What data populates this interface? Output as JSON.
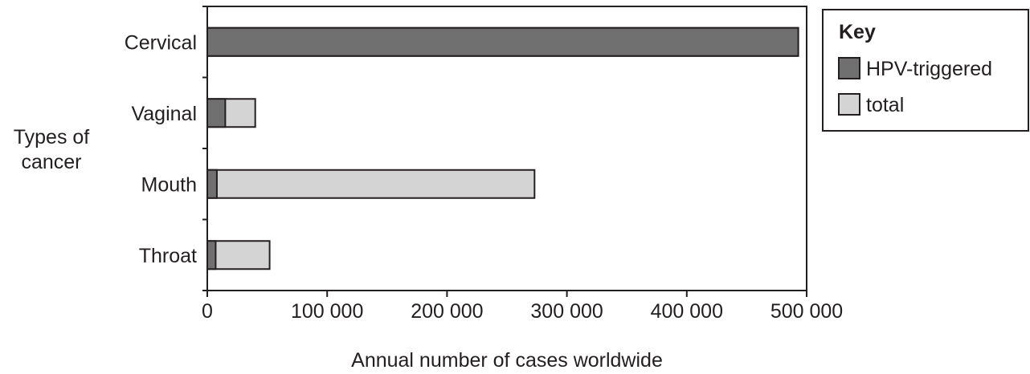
{
  "chart_data": {
    "type": "bar",
    "orientation": "horizontal",
    "stacked": "overlay",
    "categories": [
      "Cervical",
      "Vaginal",
      "Mouth",
      "Throat"
    ],
    "series": [
      {
        "name": "HPV-triggered",
        "color": "#707070",
        "values": [
          493000,
          15000,
          8000,
          7000
        ]
      },
      {
        "name": "total",
        "color": "#d4d4d4",
        "values": [
          493000,
          40000,
          273000,
          52000
        ]
      }
    ],
    "xlabel": "Annual number of cases worldwide",
    "ylabel": "Types of cancer",
    "xlim": [
      0,
      500000
    ],
    "xticks": [
      0,
      100000,
      200000,
      300000,
      400000,
      500000
    ],
    "xtick_labels": [
      "0",
      "100 000",
      "200 000",
      "300 000",
      "400 000",
      "500 000"
    ],
    "grid": false,
    "legend": {
      "title": "Key",
      "position": "top-right",
      "entries": [
        "HPV-triggered",
        "total"
      ]
    }
  }
}
